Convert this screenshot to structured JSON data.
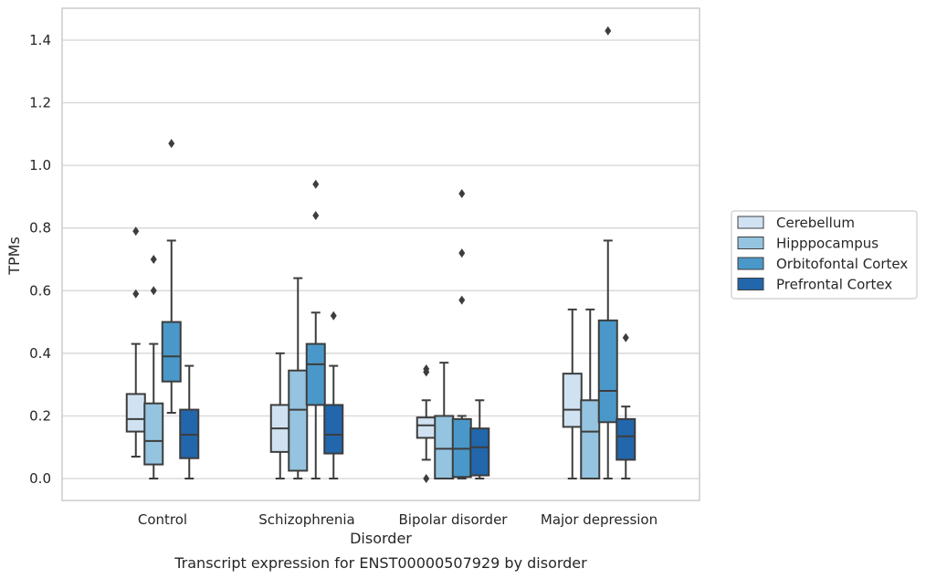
{
  "chart_data": {
    "type": "box",
    "xlabel": "Disorder",
    "ylabel": "TPMs",
    "caption": "Transcript expression for ENST00000507929 by disorder",
    "ylim": [
      -0.07,
      1.5
    ],
    "yticks": [
      "0.0",
      "0.2",
      "0.4",
      "0.6",
      "0.8",
      "1.0",
      "1.2",
      "1.4"
    ],
    "grid": "horizontal",
    "legend_position": "right",
    "categories": [
      "Control",
      "Schizophrenia",
      "Bipolar disorder",
      "Major depression"
    ],
    "series": [
      {
        "name": "Cerebellum",
        "color": "#d0e2f2",
        "boxes": [
          {
            "whislo": 0.07,
            "q1": 0.15,
            "med": 0.19,
            "q3": 0.27,
            "whishi": 0.43,
            "fliers": [
              0.59,
              0.79
            ]
          },
          {
            "whislo": 0.0,
            "q1": 0.085,
            "med": 0.16,
            "q3": 0.235,
            "whishi": 0.4,
            "fliers": []
          },
          {
            "whislo": 0.06,
            "q1": 0.13,
            "med": 0.17,
            "q3": 0.195,
            "whishi": 0.25,
            "fliers": [
              0.0,
              0.34,
              0.35
            ]
          },
          {
            "whislo": 0.0,
            "q1": 0.165,
            "med": 0.22,
            "q3": 0.335,
            "whishi": 0.54,
            "fliers": []
          }
        ]
      },
      {
        "name": "Hipppocampus",
        "color": "#94c4df",
        "boxes": [
          {
            "whislo": 0.0,
            "q1": 0.045,
            "med": 0.12,
            "q3": 0.24,
            "whishi": 0.43,
            "fliers": [
              0.6,
              0.7
            ]
          },
          {
            "whislo": 0.0,
            "q1": 0.025,
            "med": 0.22,
            "q3": 0.345,
            "whishi": 0.64,
            "fliers": []
          },
          {
            "whislo": 0.0,
            "q1": 0.0,
            "med": 0.095,
            "q3": 0.2,
            "whishi": 0.37,
            "fliers": []
          },
          {
            "whislo": 0.0,
            "q1": 0.0,
            "med": 0.15,
            "q3": 0.25,
            "whishi": 0.54,
            "fliers": []
          }
        ]
      },
      {
        "name": "Orbitofontal Cortex",
        "color": "#4a98c9",
        "boxes": [
          {
            "whislo": 0.21,
            "q1": 0.31,
            "med": 0.39,
            "q3": 0.5,
            "whishi": 0.76,
            "fliers": [
              1.07
            ]
          },
          {
            "whislo": 0.0,
            "q1": 0.235,
            "med": 0.365,
            "q3": 0.43,
            "whishi": 0.53,
            "fliers": [
              0.84,
              0.94
            ]
          },
          {
            "whislo": 0.0,
            "q1": 0.005,
            "med": 0.095,
            "q3": 0.19,
            "whishi": 0.2,
            "fliers": [
              0.57,
              0.72,
              0.91
            ]
          },
          {
            "whislo": 0.0,
            "q1": 0.18,
            "med": 0.28,
            "q3": 0.505,
            "whishi": 0.76,
            "fliers": [
              1.43
            ]
          }
        ]
      },
      {
        "name": "Prefrontal Cortex",
        "color": "#2266ab",
        "boxes": [
          {
            "whislo": 0.0,
            "q1": 0.065,
            "med": 0.14,
            "q3": 0.22,
            "whishi": 0.36,
            "fliers": []
          },
          {
            "whislo": 0.0,
            "q1": 0.08,
            "med": 0.14,
            "q3": 0.235,
            "whishi": 0.36,
            "fliers": [
              0.52
            ]
          },
          {
            "whislo": 0.0,
            "q1": 0.01,
            "med": 0.1,
            "q3": 0.16,
            "whishi": 0.25,
            "fliers": []
          },
          {
            "whislo": 0.0,
            "q1": 0.06,
            "med": 0.135,
            "q3": 0.19,
            "whishi": 0.23,
            "fliers": [
              0.45
            ]
          }
        ]
      }
    ]
  }
}
